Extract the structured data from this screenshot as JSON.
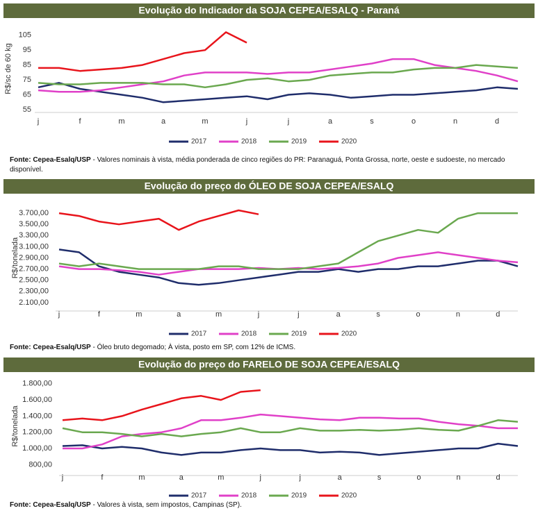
{
  "chart_data": [
    {
      "type": "line",
      "title": "Evolução do Indicador da SOJA CEPEA/ESALQ - Paraná",
      "y_label": "R$/sc de 60 kg",
      "categories": [
        "j",
        null,
        "f",
        null,
        "m",
        null,
        "a",
        null,
        "m",
        null,
        "j",
        null,
        "j",
        null,
        "a",
        null,
        "s",
        null,
        "o",
        null,
        "n",
        null,
        "d",
        null
      ],
      "ylim": [
        55,
        110
      ],
      "yticks": [
        55,
        65,
        75,
        85,
        95,
        105
      ],
      "grid": false,
      "series": [
        {
          "name": "2017",
          "color": "#1f2d6b",
          "values": [
            70,
            73,
            69,
            67,
            65,
            63,
            60,
            61,
            62,
            63,
            64,
            62,
            65,
            66,
            65,
            63,
            64,
            65,
            65,
            66,
            67,
            68,
            70,
            69
          ]
        },
        {
          "name": "2018",
          "color": "#e040c8",
          "values": [
            68,
            67,
            67,
            68,
            70,
            72,
            74,
            78,
            80,
            80,
            80,
            79,
            80,
            80,
            82,
            84,
            86,
            89,
            89,
            85,
            83,
            81,
            78,
            74
          ]
        },
        {
          "name": "2019",
          "color": "#6aa84f",
          "values": [
            73,
            72,
            72,
            73,
            73,
            73,
            72,
            72,
            70,
            72,
            75,
            76,
            74,
            75,
            78,
            79,
            80,
            80,
            82,
            83,
            83,
            85,
            84,
            83
          ]
        },
        {
          "name": "2020",
          "color": "#e8141b",
          "values": [
            83,
            83,
            81,
            82,
            83,
            85,
            89,
            93,
            95,
            107,
            100,
            null,
            null,
            null,
            null,
            null,
            null,
            null,
            null,
            null,
            null,
            null,
            null,
            null
          ]
        }
      ],
      "source": "Fonte: Cepea-Esalq/USP",
      "note": "- Valores nominais à vista, média ponderada de cinco regiões do PR: Paranaguá, Ponta Grossa, norte, oeste e sudoeste, no mercado disponível."
    },
    {
      "type": "line",
      "title": "Evolução do preço do ÓLEO DE SOJA CEPEA/ESALQ",
      "y_label": "R$/tonelada",
      "categories": [
        "j",
        null,
        "f",
        null,
        "m",
        null,
        "a",
        null,
        "m",
        null,
        "j",
        null,
        "j",
        null,
        "a",
        null,
        "s",
        null,
        "o",
        null,
        "n",
        null,
        "d",
        null
      ],
      "ylim": [
        2000,
        3800
      ],
      "grid": false,
      "yticks": [
        {
          "value": 2100,
          "label": "2.100,00"
        },
        {
          "value": 2300,
          "label": "2.300,00"
        },
        {
          "value": 2500,
          "label": "2.500,00"
        },
        {
          "value": 2700,
          "label": "2.700,00"
        },
        {
          "value": 2900,
          "label": "2.900,00"
        },
        {
          "value": 3100,
          "label": "3.100,00"
        },
        {
          "value": 3300,
          "label": "3.300,00"
        },
        {
          "value": 3500,
          "label": "3.500,00"
        },
        {
          "value": 3700,
          "label": "3.700,00"
        }
      ],
      "series": [
        {
          "name": "2017",
          "color": "#1f2d6b",
          "values": [
            3050,
            3000,
            2750,
            2650,
            2600,
            2550,
            2450,
            2420,
            2450,
            2500,
            2550,
            2600,
            2650,
            2650,
            2700,
            2650,
            2700,
            2700,
            2750,
            2750,
            2800,
            2850,
            2850,
            2750
          ]
        },
        {
          "name": "2018",
          "color": "#e040c8",
          "values": [
            2750,
            2700,
            2700,
            2680,
            2650,
            2600,
            2650,
            2700,
            2700,
            2700,
            2720,
            2700,
            2720,
            2700,
            2720,
            2750,
            2800,
            2900,
            2950,
            3000,
            2950,
            2900,
            2850,
            2820
          ]
        },
        {
          "name": "2019",
          "color": "#6aa84f",
          "values": [
            2800,
            2750,
            2800,
            2750,
            2700,
            2700,
            2700,
            2700,
            2750,
            2750,
            2700,
            2700,
            2700,
            2750,
            2800,
            3000,
            3200,
            3300,
            3400,
            3350,
            3600,
            3700,
            3700,
            3700
          ]
        },
        {
          "name": "2020",
          "color": "#e8141b",
          "values": [
            3700,
            3650,
            3550,
            3500,
            3550,
            3600,
            3400,
            3550,
            3650,
            3750,
            3680,
            null,
            null,
            null,
            null,
            null,
            null,
            null,
            null,
            null,
            null,
            null,
            null,
            null
          ]
        }
      ],
      "source": "Fonte: Cepea-Esalq/USP",
      "note": "- Óleo bruto degomado; À vista, posto em SP, com 12% de ICMS."
    },
    {
      "type": "line",
      "title": "Evolução do preço do FARELO DE SOJA CEPEA/ESALQ",
      "y_label": "R$/tonelada",
      "categories": [
        "j",
        null,
        "f",
        null,
        "m",
        null,
        "a",
        null,
        "m",
        null,
        "j",
        null,
        "j",
        null,
        "a",
        null,
        "s",
        null,
        "o",
        null,
        "n",
        null,
        "d",
        null
      ],
      "ylim": [
        700,
        1850
      ],
      "grid": false,
      "yticks": [
        {
          "value": 800,
          "label": "800,00"
        },
        {
          "value": 1000,
          "label": "1.000,00"
        },
        {
          "value": 1200,
          "label": "1.200,00"
        },
        {
          "value": 1400,
          "label": "1.400,00"
        },
        {
          "value": 1600,
          "label": "1.600,00"
        },
        {
          "value": 1800,
          "label": "1.800,00"
        }
      ],
      "series": [
        {
          "name": "2017",
          "color": "#1f2d6b",
          "values": [
            1030,
            1040,
            1000,
            1020,
            1000,
            950,
            920,
            950,
            950,
            980,
            1000,
            980,
            980,
            950,
            960,
            950,
            920,
            940,
            960,
            980,
            1000,
            1000,
            1060,
            1030
          ]
        },
        {
          "name": "2018",
          "color": "#e040c8",
          "values": [
            1000,
            1000,
            1050,
            1150,
            1180,
            1200,
            1250,
            1350,
            1350,
            1380,
            1420,
            1400,
            1380,
            1360,
            1350,
            1380,
            1380,
            1370,
            1370,
            1330,
            1300,
            1280,
            1250,
            1250
          ]
        },
        {
          "name": "2019",
          "color": "#6aa84f",
          "values": [
            1250,
            1200,
            1200,
            1180,
            1150,
            1180,
            1150,
            1180,
            1200,
            1250,
            1200,
            1200,
            1250,
            1220,
            1220,
            1230,
            1220,
            1230,
            1250,
            1230,
            1220,
            1280,
            1350,
            1330
          ]
        },
        {
          "name": "2020",
          "color": "#e8141b",
          "values": [
            1350,
            1370,
            1350,
            1400,
            1480,
            1550,
            1620,
            1650,
            1600,
            1700,
            1720,
            null,
            null,
            null,
            null,
            null,
            null,
            null,
            null,
            null,
            null,
            null,
            null,
            null
          ]
        }
      ],
      "source": "Fonte: Cepea-Esalq/USP",
      "note": "- Valores à vista, sem impostos, Campinas (SP)."
    }
  ]
}
